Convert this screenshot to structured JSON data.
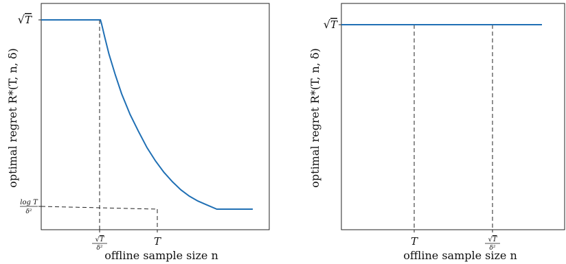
{
  "chart_data": [
    {
      "type": "line",
      "title": "",
      "xlabel": "offline sample size n",
      "ylabel": "optimal regret R*(T, n, δ)",
      "xlim": [
        0,
        100
      ],
      "ylim": [
        0,
        100
      ],
      "x_ticks": [
        "√T/δ²",
        "T"
      ],
      "y_ticks": [
        "√T",
        "log T/δ²"
      ],
      "series": [
        {
          "x": [
            0,
            28,
            28.5,
            30,
            32,
            35,
            38,
            42,
            46,
            50,
            54,
            58,
            62,
            66,
            70,
            74,
            78,
            83,
            100
          ],
          "y": [
            100,
            100,
            98,
            91,
            82,
            71,
            61,
            50,
            41,
            32.5,
            25.5,
            19.5,
            14.5,
            10.2,
            6.9,
            4.3,
            2.4,
            0,
            0
          ]
        }
      ],
      "grid": false,
      "legend": "none"
    },
    {
      "type": "line",
      "title": "",
      "xlabel": "offline sample size n",
      "ylabel": "optimal regret R*(T, n, δ)",
      "xlim": [
        0,
        100
      ],
      "ylim": [
        0,
        100
      ],
      "x_ticks": [
        "T",
        "√T/δ²"
      ],
      "y_ticks": [
        "√T"
      ],
      "series": [
        {
          "x": [
            0,
            100
          ],
          "y": [
            100,
            100
          ]
        }
      ],
      "grid": false,
      "legend": "none"
    }
  ]
}
